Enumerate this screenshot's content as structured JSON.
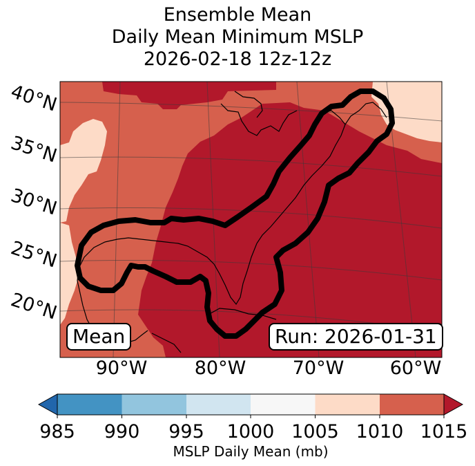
{
  "title": {
    "line1": "Ensemble Mean",
    "line2": "Daily Mean Minimum MSLP",
    "line3": "2026-02-18 12z-12z"
  },
  "map": {
    "lat_labels": [
      "40°N",
      "35°N",
      "30°N",
      "25°N",
      "20°N"
    ],
    "lon_labels": [
      "90°W",
      "80°W",
      "70°W",
      "60°W"
    ],
    "mean_label": "Mean",
    "run_label": "Run: 2026-01-31",
    "contour_color": "#000000",
    "fill_colors": {
      "1005_1010": "#fddbc7",
      "1010_1015": "#d6604d",
      "above_1015": "#b2182b"
    }
  },
  "colorbar": {
    "ticks": [
      "985",
      "990",
      "995",
      "1000",
      "1005",
      "1010",
      "1015"
    ],
    "label": "MSLP Daily Mean (mb)",
    "colors": [
      "#2166ac",
      "#4393c3",
      "#92c5de",
      "#d1e5f0",
      "#f7f7f7",
      "#fddbc7",
      "#d6604d",
      "#b2182b"
    ]
  }
}
